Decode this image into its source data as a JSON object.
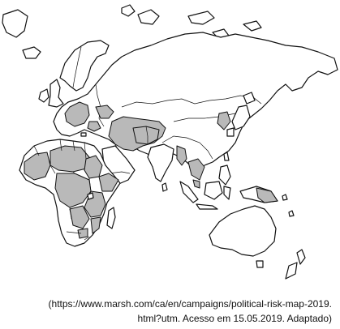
{
  "figure": {
    "source_line_1": "(https://www.marsh.com/ca/en/campaigns/political-risk-map-2019.",
    "source_line_2": "html?utm. Acesso em 15.05.2019. Adaptado)"
  },
  "map": {
    "shading_color": "#b9b9b9",
    "outline_color": "#111111",
    "background_color": "#ffffff"
  }
}
